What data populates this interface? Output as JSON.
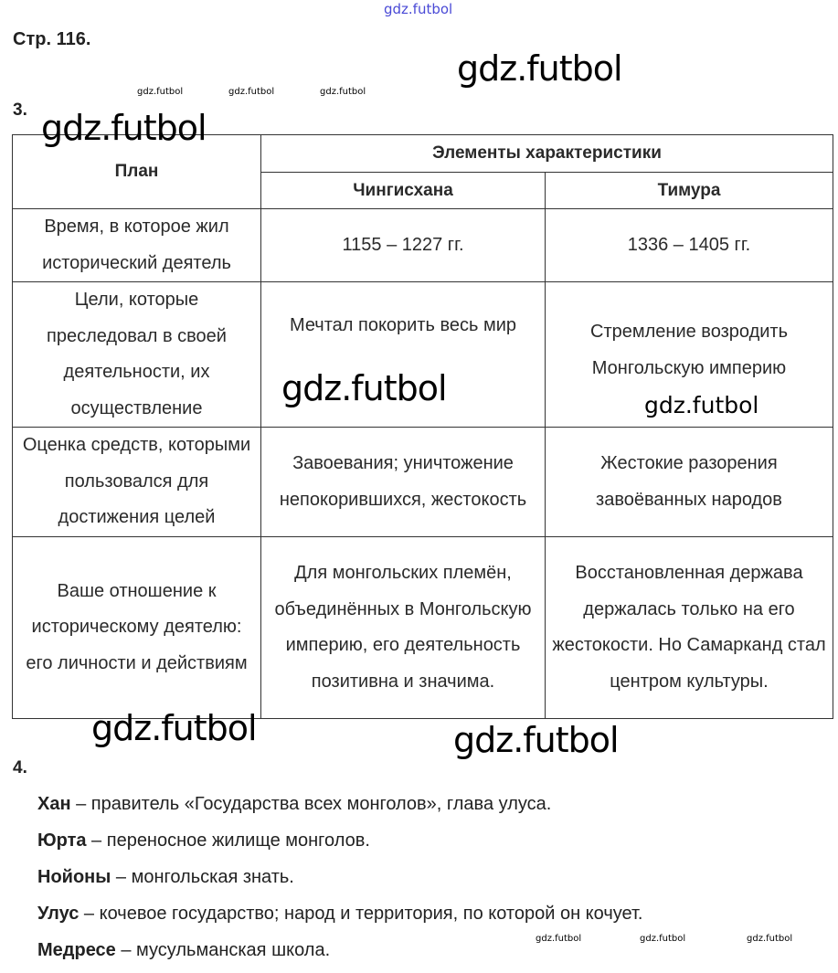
{
  "page_label": "Стр. 116.",
  "task3": {
    "number": "3.",
    "table": {
      "header": {
        "plan": "План",
        "elements": "Элементы характеристики",
        "col_genghis": "Чингисхана",
        "col_timur": "Тимура"
      },
      "rows": [
        {
          "plan": "Время, в которое жил исторический деятель",
          "genghis": "1155 – 1227 гг.",
          "timur": "1336 – 1405 гг."
        },
        {
          "plan": "Цели, которые преследовал в своей деятельности, их осуществление",
          "genghis": "Мечтал покорить весь мир",
          "timur": "Стремление возродить Монгольскую империю"
        },
        {
          "plan": "Оценка средств, которыми пользовался для достижения целей",
          "genghis": "Завоевания; уничтожение непокорившихся, жестокость",
          "timur": "Жестокие разорения завоёванных народов"
        },
        {
          "plan": "Ваше отношение к историческому деятелю: его личности и действиям",
          "genghis": "Для монгольских племён, объединённых в Монгольскую империю, его деятельность позитивна и значима.",
          "timur": "Восстановленная держава держалась только на его жестокости. Но Самарканд стал центром культуры."
        }
      ]
    }
  },
  "task4": {
    "number": "4.",
    "definitions": [
      {
        "term": "Хан",
        "text": " – правитель «Государства всех монголов», глава улуса."
      },
      {
        "term": "Юрта",
        "text": " – переносное жилище монголов."
      },
      {
        "term": "Нойоны",
        "text": " – монгольская знать."
      },
      {
        "term": "Улус",
        "text": " – кочевое государство; народ и территория, по которой он кочует."
      },
      {
        "term": "Медресе",
        "text": " – мусульманская школа."
      }
    ]
  },
  "watermark": "gdz.futbol",
  "colors": {
    "watermark_top": "#4a4ad6",
    "text": "#222222"
  }
}
